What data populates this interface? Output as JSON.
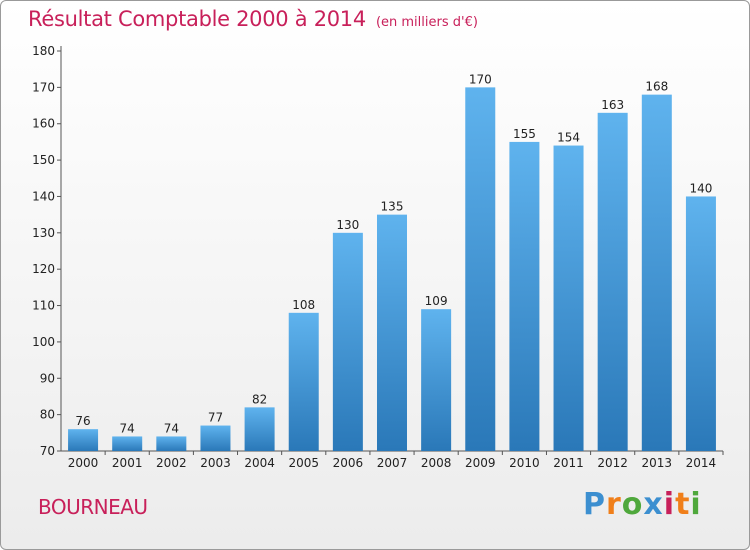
{
  "header": {
    "title": "Résultat Comptable 2000 à 2014",
    "subtitle": "(en milliers d'€)"
  },
  "footer": {
    "commune": "BOURNEAU",
    "logo": {
      "text": "Proxiti",
      "letters": [
        "P",
        "r",
        "o",
        "x",
        "i",
        "t",
        "i"
      ],
      "colors": [
        "#3c8fd0",
        "#f07f1a",
        "#4fa83c",
        "#3c8fd0",
        "#c8205a",
        "#f07f1a",
        "#4fa83c"
      ]
    }
  },
  "colors": {
    "bar_top": "#5fb3ee",
    "bar_bottom": "#2a78b8",
    "title": "#c8205a",
    "axis": "#555555"
  },
  "chart_data": {
    "type": "bar",
    "title": "Résultat Comptable 2000 à 2014",
    "subtitle": "(en milliers d'€)",
    "xlabel": "",
    "ylabel": "",
    "categories": [
      "2000",
      "2001",
      "2002",
      "2003",
      "2004",
      "2005",
      "2006",
      "2007",
      "2008",
      "2009",
      "2010",
      "2011",
      "2012",
      "2013",
      "2014"
    ],
    "values": [
      76,
      74,
      74,
      77,
      82,
      108,
      130,
      135,
      109,
      170,
      155,
      154,
      163,
      168,
      140
    ],
    "ylim": [
      70,
      180
    ],
    "yticks": [
      70,
      80,
      90,
      100,
      110,
      120,
      130,
      140,
      150,
      160,
      170,
      180
    ],
    "grid": false,
    "legend": "none"
  }
}
